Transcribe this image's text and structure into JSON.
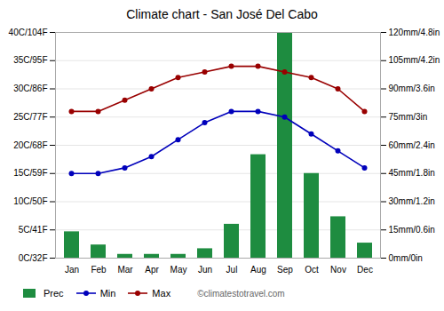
{
  "chart_data": {
    "type": "bar",
    "title": "Climate chart - San José Del Cabo",
    "categories": [
      "Jan",
      "Feb",
      "Mar",
      "Apr",
      "May",
      "Jun",
      "Jul",
      "Aug",
      "Sep",
      "Oct",
      "Nov",
      "Dec"
    ],
    "series": [
      {
        "name": "Prec",
        "type": "bar",
        "axis": "y2",
        "color": "#1e8c40",
        "values": [
          14,
          7,
          2,
          2,
          2,
          5,
          18,
          55,
          120,
          45,
          22,
          8
        ]
      },
      {
        "name": "Min",
        "type": "line",
        "color": "#0000bb",
        "marker": "circle",
        "values": [
          15,
          15,
          16,
          18,
          21,
          24,
          26,
          26,
          25,
          22,
          19,
          16
        ]
      },
      {
        "name": "Max",
        "type": "line",
        "color": "#990000",
        "marker": "circle",
        "values": [
          26,
          26,
          28,
          30,
          32,
          33,
          34,
          34,
          33,
          32,
          30,
          26
        ]
      }
    ],
    "ylim": [
      0,
      40
    ],
    "yticks": [
      {
        "value": 0,
        "label": "0C/32F"
      },
      {
        "value": 5,
        "label": "5C/41F"
      },
      {
        "value": 10,
        "label": "10C/50F"
      },
      {
        "value": 15,
        "label": "15C/59F"
      },
      {
        "value": 20,
        "label": "20C/68F"
      },
      {
        "value": 25,
        "label": "25C/77F"
      },
      {
        "value": 30,
        "label": "30C/86F"
      },
      {
        "value": 35,
        "label": "35C/95F"
      },
      {
        "value": 40,
        "label": "40C/104F"
      }
    ],
    "y2lim": [
      0,
      120
    ],
    "y2ticks": [
      {
        "value": 0,
        "label": "0mm/0in"
      },
      {
        "value": 15,
        "label": "15mm/0.6in"
      },
      {
        "value": 30,
        "label": "30mm/1.2in"
      },
      {
        "value": 45,
        "label": "45mm/1.8in"
      },
      {
        "value": 60,
        "label": "60mm/2.4in"
      },
      {
        "value": 75,
        "label": "75mm/3in"
      },
      {
        "value": 90,
        "label": "90mm/3.6in"
      },
      {
        "value": 105,
        "label": "105mm/4.2in"
      },
      {
        "value": 120,
        "label": "120mm/4.8in"
      }
    ],
    "grid": true,
    "legend": "bottom",
    "annotations": [
      "©climatestotravel.com"
    ]
  }
}
